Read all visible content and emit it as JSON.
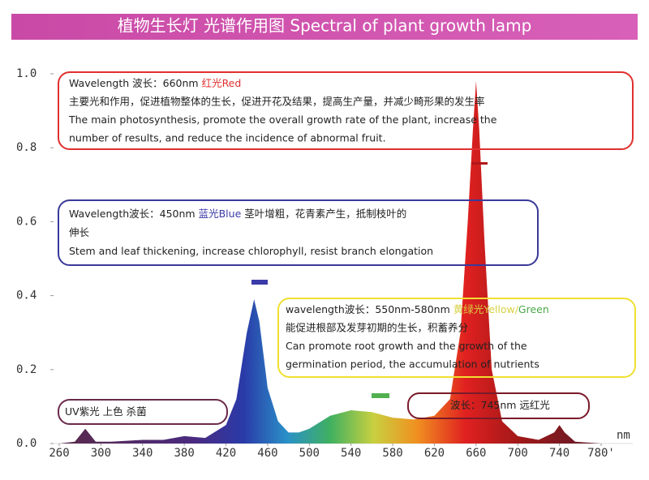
{
  "chart_data": {
    "type": "area",
    "title": "植物生长灯 光谱作用图 Spectral of plant growth lamp",
    "x_unit": "nm",
    "x": [
      260,
      275,
      285,
      295,
      310,
      340,
      360,
      380,
      400,
      420,
      430,
      440,
      447,
      452,
      460,
      470,
      480,
      490,
      500,
      520,
      540,
      560,
      580,
      600,
      620,
      635,
      645,
      652,
      657,
      660,
      663,
      668,
      675,
      685,
      700,
      720,
      735,
      740,
      745,
      755,
      780
    ],
    "values": [
      0,
      0.005,
      0.04,
      0.005,
      0.005,
      0.01,
      0.01,
      0.02,
      0.015,
      0.05,
      0.12,
      0.3,
      0.39,
      0.33,
      0.15,
      0.06,
      0.03,
      0.03,
      0.04,
      0.075,
      0.09,
      0.085,
      0.07,
      0.065,
      0.075,
      0.12,
      0.3,
      0.6,
      0.85,
      0.98,
      0.85,
      0.55,
      0.2,
      0.06,
      0.02,
      0.01,
      0.03,
      0.05,
      0.03,
      0.005,
      0
    ],
    "xlim": [
      260,
      780
    ],
    "ylim": [
      0,
      1
    ],
    "xticks": [
      260,
      300,
      340,
      380,
      420,
      460,
      500,
      540,
      580,
      620,
      660,
      700,
      740,
      {
        "value": 780,
        "label": "780'"
      }
    ],
    "yticks": [
      {
        "value": 0,
        "label": "0.0"
      },
      0.2,
      0.4,
      0.6,
      0.8,
      {
        "value": 1,
        "label": "1.0"
      }
    ],
    "annotations": [
      {
        "color": "#e0302f",
        "lines": [
          [
            {
              "text": "Wavelength 波长：660nm  "
            },
            {
              "text": "红光Red",
              "color": "#e0302f"
            }
          ],
          [
            {
              "text": "主要光和作用，促进植物整体的生长，促进开花及结果，提高生产量，并减少畸形果的发生率"
            }
          ],
          [
            {
              "text": "The main photosynthesis, promote the overall growth rate of the plant, increase the"
            }
          ],
          [
            {
              "text": "number of results, and reduce the incidence of abnormal fruit."
            }
          ]
        ]
      },
      {
        "color": "#3a3a9a",
        "lines": [
          [
            {
              "text": "Wavelength波长：450nm  "
            },
            {
              "text": "蓝光Blue",
              "color": "#3a3aa8"
            },
            {
              "text": "  茎叶增粗，花青素产生，抵制枝叶的"
            }
          ],
          [
            {
              "text": "伸长"
            }
          ],
          [
            {
              "text": "Stem and leaf thickening, increase chlorophyll, resist branch elongation"
            }
          ]
        ]
      },
      {
        "color": "#f0e030",
        "lines": [
          [
            {
              "text": "wavelength波长：550nm-580nm  "
            },
            {
              "text": "黄绿光Yellow/",
              "color": "#d8d040"
            },
            {
              "text": "Green",
              "color": "#4aa84a"
            }
          ],
          [
            {
              "text": "能促进根部及发芽初期的生长，积蓄养分"
            }
          ],
          [
            {
              "text": "Can promote root growth and the growth of the"
            }
          ],
          [
            {
              "text": "germination period, the accumulation of nutrients"
            }
          ]
        ]
      },
      {
        "color": "#6a2a4a",
        "lines": [
          [
            {
              "text": "UV紫光 上色 杀菌"
            }
          ]
        ]
      },
      {
        "color": "#7a1a2a",
        "lines": [
          [
            {
              "text": "波长：745nm 远红光"
            }
          ]
        ]
      }
    ]
  }
}
